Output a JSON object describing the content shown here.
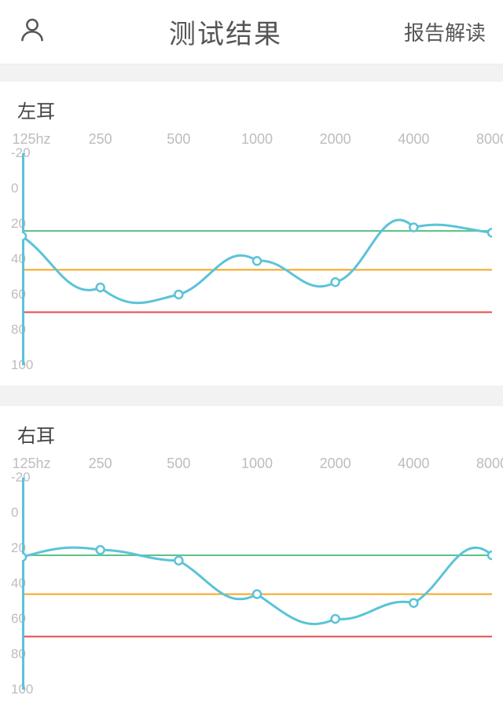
{
  "header": {
    "title": "测试结果",
    "right_link": "报告解读"
  },
  "colors": {
    "axis": "#5bc3d8",
    "line": "#5bc3d8",
    "marker_fill": "#ffffff",
    "marker_stroke": "#5bc3d8",
    "green_line": "#5bc487",
    "orange_line": "#f5a623",
    "red_line": "#e6494b",
    "label_text": "#bdbdbd",
    "title_text": "#444444",
    "header_text": "#555555",
    "bg": "#f2f2f2",
    "card_bg": "#ffffff"
  },
  "chart_common": {
    "x_ticks": [
      "125hz",
      "250",
      "500",
      "1000",
      "2000",
      "4000",
      "8000"
    ],
    "y_ticks": [
      -20,
      0,
      20,
      40,
      60,
      80,
      100
    ],
    "ylim": [
      -20,
      100
    ],
    "ref_lines": [
      {
        "y": 24,
        "color": "#5bc487"
      },
      {
        "y": 46,
        "color": "#f5a623"
      },
      {
        "y": 70,
        "color": "#e6494b"
      }
    ],
    "line_width": 3,
    "marker_radius": 5,
    "axis_width": 3
  },
  "charts": [
    {
      "title": "左耳",
      "points": [
        {
          "xi": 0,
          "y": 27
        },
        {
          "xi": 1,
          "y": 56
        },
        {
          "xi": 2,
          "y": 60
        },
        {
          "xi": 3,
          "y": 41
        },
        {
          "xi": 4,
          "y": 53
        },
        {
          "xi": 5,
          "y": 22
        },
        {
          "xi": 6,
          "y": 25
        }
      ],
      "control_offsets": [
        {
          "dy1": 12,
          "dy2": 8
        },
        {
          "dy1": 14,
          "dy2": 4
        },
        {
          "dy1": -5,
          "dy2": -12
        },
        {
          "dy1": -2,
          "dy2": 10
        },
        {
          "dy1": -4,
          "dy2": -18
        },
        {
          "dy1": -4,
          "dy2": -2
        }
      ]
    },
    {
      "title": "右耳",
      "points": [
        {
          "xi": 0,
          "y": 25
        },
        {
          "xi": 1,
          "y": 21
        },
        {
          "xi": 2,
          "y": 27
        },
        {
          "xi": 3,
          "y": 46
        },
        {
          "xi": 4,
          "y": 60
        },
        {
          "xi": 5,
          "y": 51
        },
        {
          "xi": 6,
          "y": 24
        }
      ],
      "control_offsets": [
        {
          "dy1": -5,
          "dy2": -3
        },
        {
          "dy1": 0,
          "dy2": 0
        },
        {
          "dy1": 10,
          "dy2": 10
        },
        {
          "dy1": 12,
          "dy2": 8
        },
        {
          "dy1": 2,
          "dy2": -4
        },
        {
          "dy1": -10,
          "dy2": -16
        }
      ]
    }
  ]
}
